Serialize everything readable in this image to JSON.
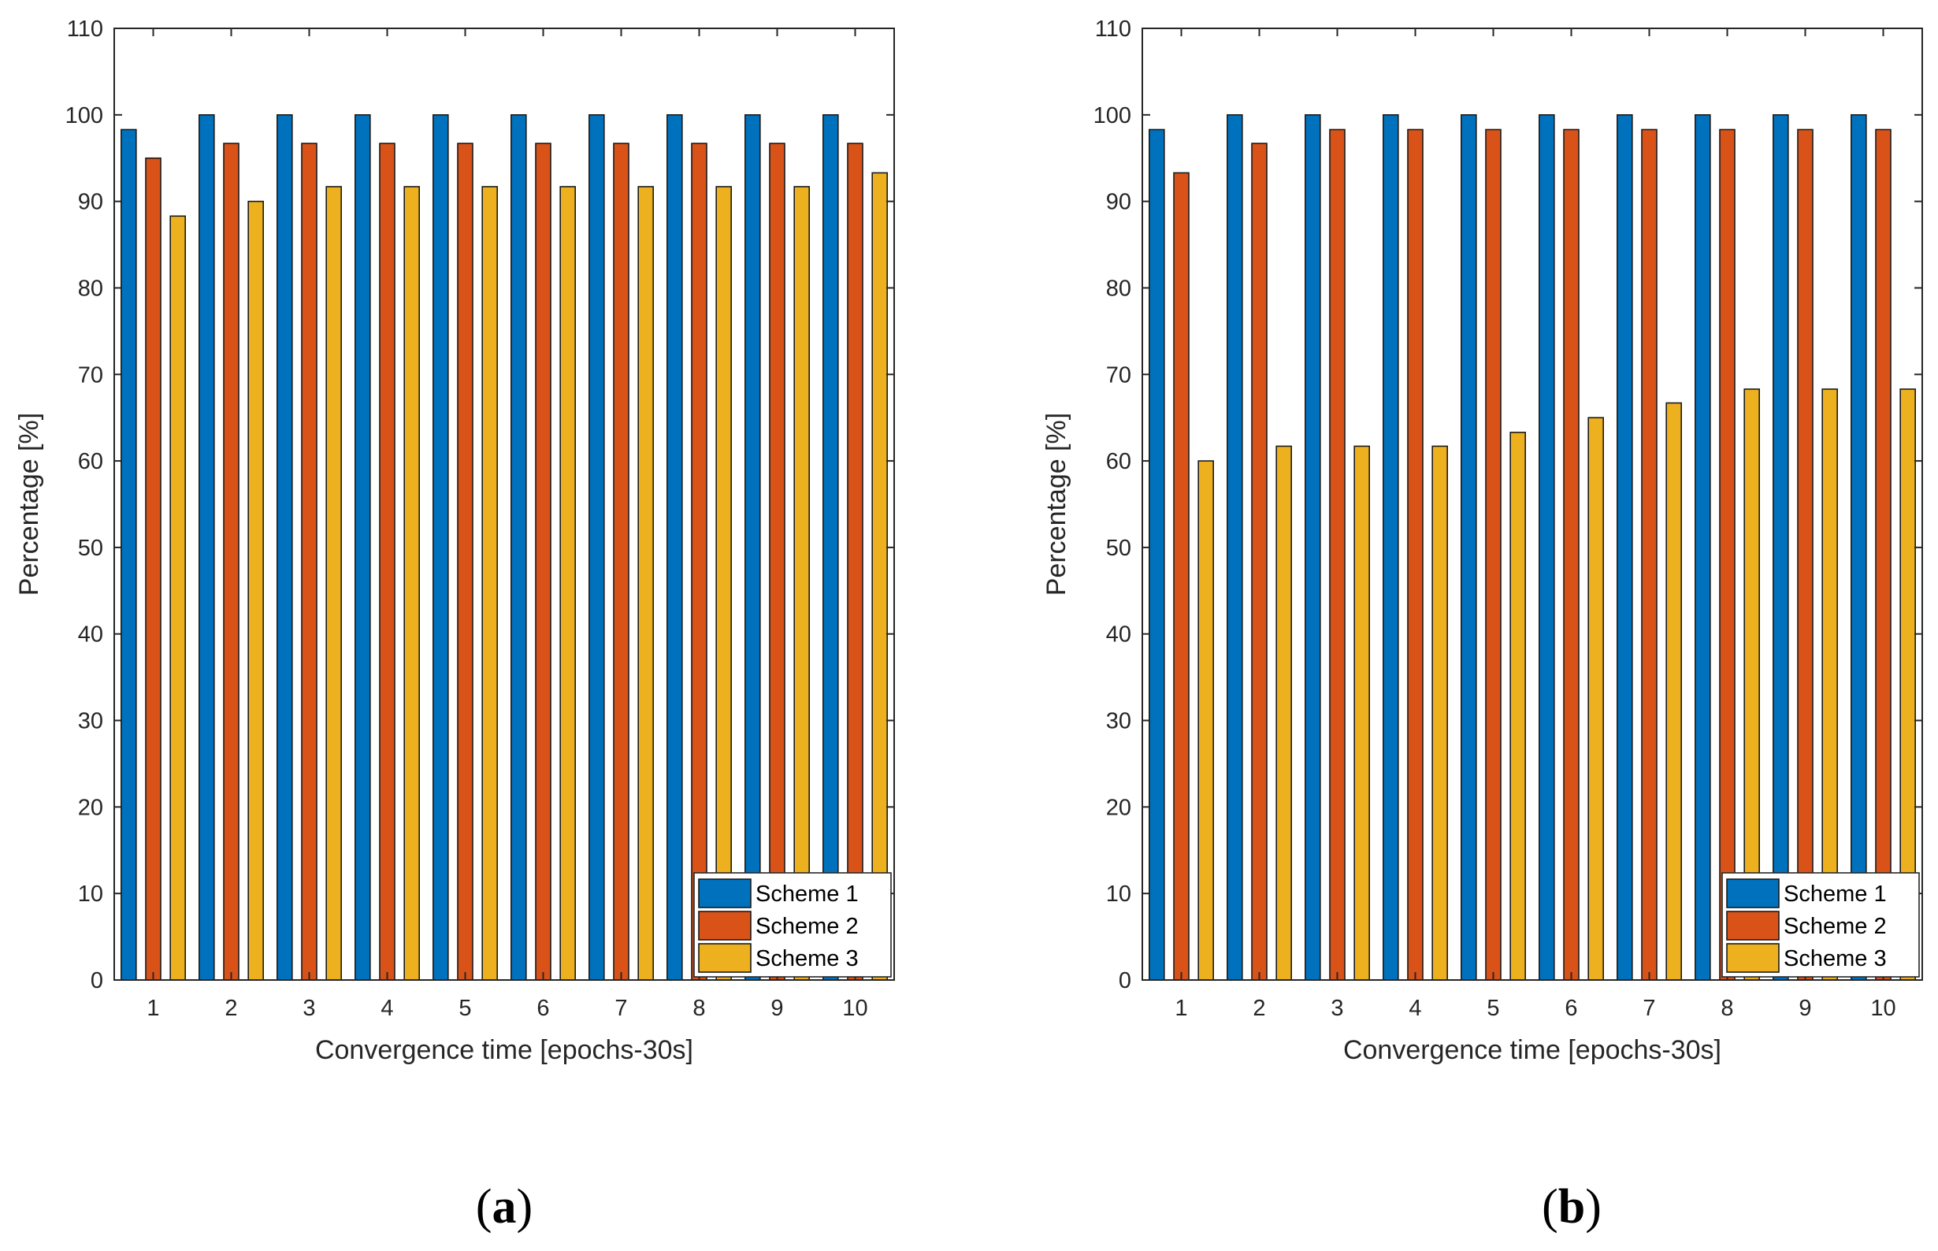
{
  "chart_data": [
    {
      "type": "bar",
      "panel_label": "a",
      "categories": [
        "1",
        "2",
        "3",
        "4",
        "5",
        "6",
        "7",
        "8",
        "9",
        "10"
      ],
      "series": [
        {
          "name": "Scheme 1",
          "color": "#0072BD",
          "values": [
            98.3,
            100,
            100,
            100,
            100,
            100,
            100,
            100,
            100,
            100
          ]
        },
        {
          "name": "Scheme 2",
          "color": "#D95319",
          "values": [
            95.0,
            96.7,
            96.7,
            96.7,
            96.7,
            96.7,
            96.7,
            96.7,
            96.7,
            96.7
          ]
        },
        {
          "name": "Scheme 3",
          "color": "#EDB120",
          "values": [
            88.3,
            90.0,
            91.7,
            91.7,
            91.7,
            91.7,
            91.7,
            91.7,
            91.7,
            93.3
          ]
        }
      ],
      "xlabel": "Convergence time [epochs-30s]",
      "ylabel": "Percentage [%]",
      "ylim": [
        0,
        110
      ],
      "yticks": [
        "0",
        "10",
        "20",
        "30",
        "40",
        "50",
        "60",
        "70",
        "80",
        "90",
        "100",
        "110"
      ],
      "grid": false,
      "legend_position": "bottom-right"
    },
    {
      "type": "bar",
      "panel_label": "b",
      "categories": [
        "1",
        "2",
        "3",
        "4",
        "5",
        "6",
        "7",
        "8",
        "9",
        "10"
      ],
      "series": [
        {
          "name": "Scheme 1",
          "color": "#0072BD",
          "values": [
            98.3,
            100,
            100,
            100,
            100,
            100,
            100,
            100,
            100,
            100
          ]
        },
        {
          "name": "Scheme 2",
          "color": "#D95319",
          "values": [
            93.3,
            96.7,
            98.3,
            98.3,
            98.3,
            98.3,
            98.3,
            98.3,
            98.3,
            98.3
          ]
        },
        {
          "name": "Scheme 3",
          "color": "#EDB120",
          "values": [
            60.0,
            61.7,
            61.7,
            61.7,
            63.3,
            65.0,
            66.7,
            68.3,
            68.3,
            68.3
          ]
        }
      ],
      "xlabel": "Convergence time [epochs-30s]",
      "ylabel": "Percentage [%]",
      "ylim": [
        0,
        110
      ],
      "yticks": [
        "0",
        "10",
        "20",
        "30",
        "40",
        "50",
        "60",
        "70",
        "80",
        "90",
        "100",
        "110"
      ],
      "grid": false,
      "legend_position": "bottom-right"
    }
  ]
}
